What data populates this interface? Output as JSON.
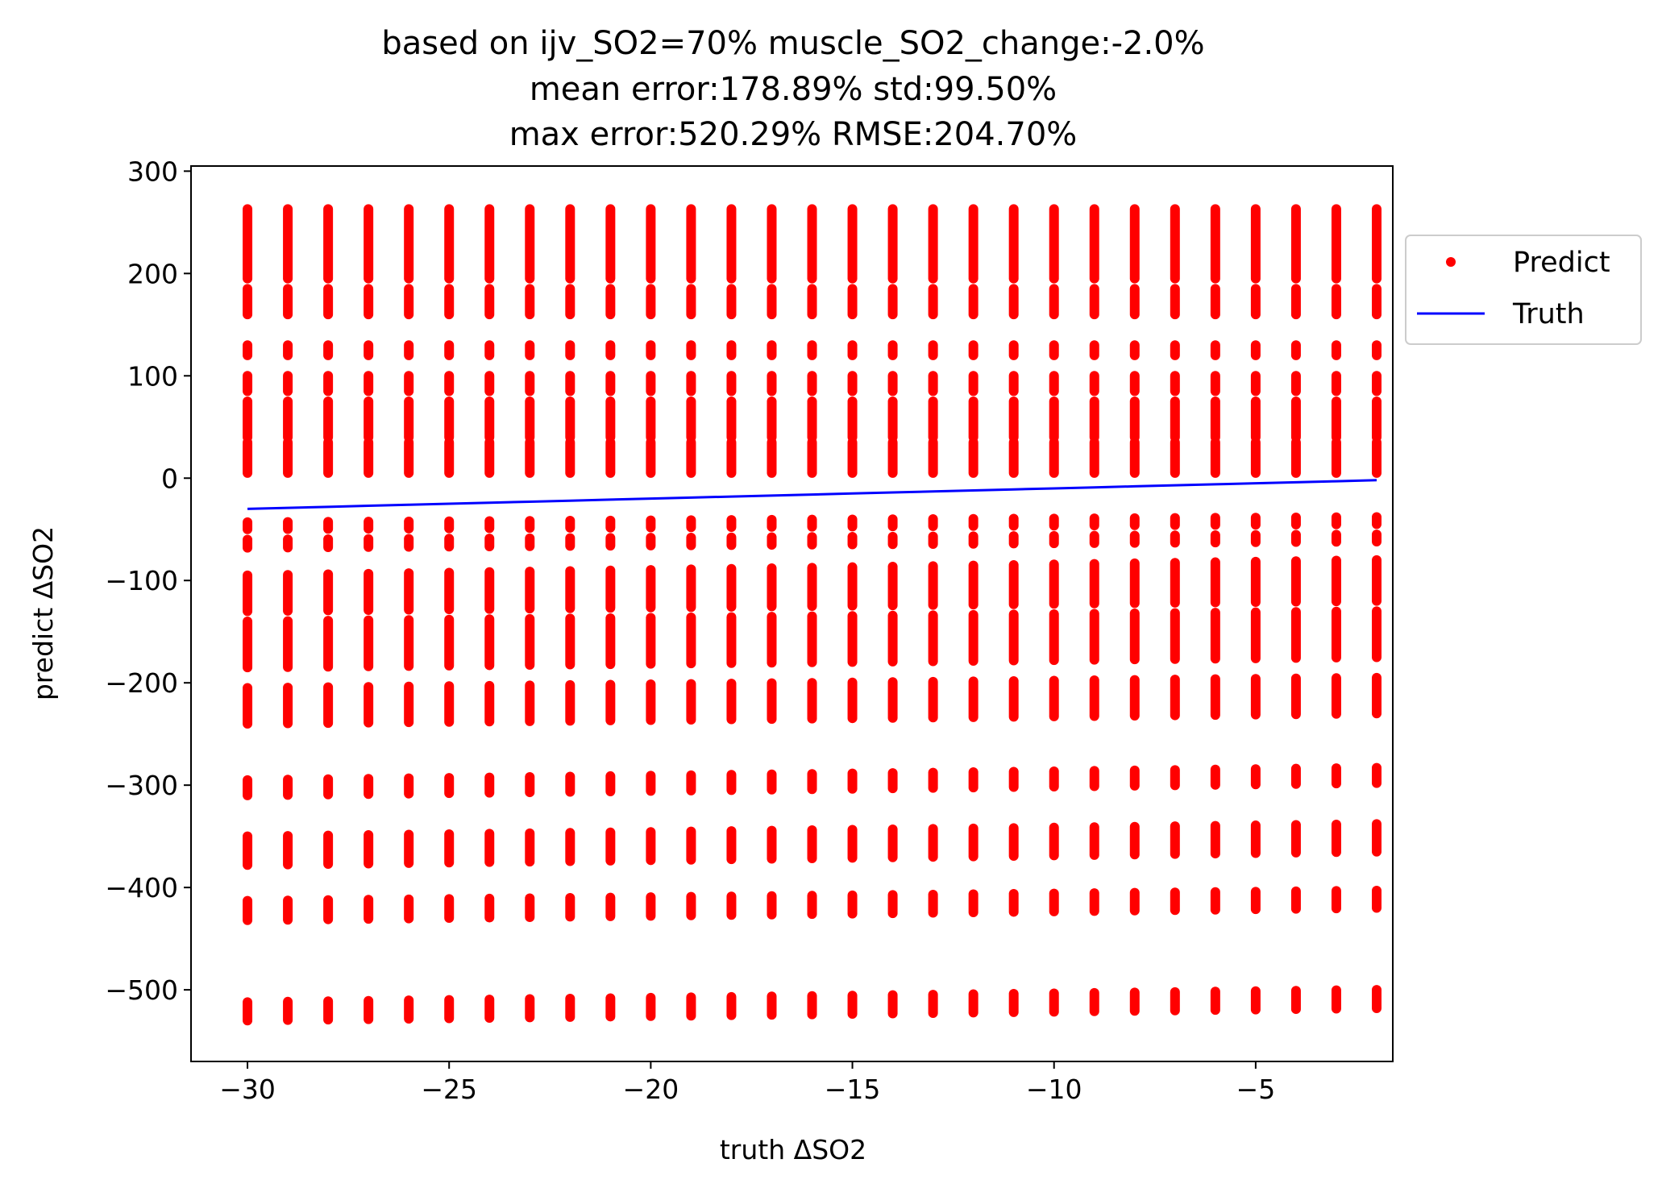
{
  "chart_data": {
    "type": "scatter",
    "title_lines": [
      "based on ijv_SO2=70% muscle_SO2_change:-2.0%",
      "mean error:178.89% std:99.50%",
      "max error:520.29% RMSE:204.70%"
    ],
    "xlabel": "truth ΔSO2",
    "ylabel": "predict ΔSO2",
    "xlim": [
      -31.4,
      -1.6
    ],
    "ylim": [
      -570,
      305
    ],
    "x_ticks": [
      -30,
      -25,
      -20,
      -15,
      -10,
      -5
    ],
    "x_tick_labels": [
      "−30",
      "−25",
      "−20",
      "−15",
      "−10",
      "−5"
    ],
    "y_ticks": [
      300,
      200,
      100,
      0,
      -100,
      -200,
      -300,
      -400,
      -500
    ],
    "y_tick_labels": [
      "300",
      "200",
      "100",
      "0",
      "−100",
      "−200",
      "−300",
      "−400",
      "−500"
    ],
    "grid": false,
    "legend_position": "outside-right-top",
    "x": [
      -30,
      -29,
      -28,
      -27,
      -26,
      -25,
      -24,
      -23,
      -22,
      -21,
      -20,
      -19,
      -18,
      -17,
      -16,
      -15,
      -14,
      -13,
      -12,
      -11,
      -10,
      -9,
      -8,
      -7,
      -6,
      -5,
      -4,
      -3,
      -2
    ],
    "series": [
      {
        "name": "Predict",
        "style": "points",
        "color": "#ff0000",
        "prediction_bands_at_x_minus_30": [
          [
            195,
            263
          ],
          [
            160,
            185
          ],
          [
            120,
            130
          ],
          [
            85,
            100
          ],
          [
            40,
            75
          ],
          [
            5,
            35
          ],
          [
            -50,
            -43
          ],
          [
            -68,
            -60
          ],
          [
            -130,
            -95
          ],
          [
            -185,
            -140
          ],
          [
            -240,
            -205
          ],
          [
            -310,
            -295
          ],
          [
            -378,
            -350
          ],
          [
            -432,
            -413
          ],
          [
            -530,
            -512
          ]
        ],
        "prediction_bands_at_x_minus_2": [
          [
            195,
            263
          ],
          [
            160,
            185
          ],
          [
            120,
            130
          ],
          [
            85,
            100
          ],
          [
            40,
            75
          ],
          [
            5,
            35
          ],
          [
            -45,
            -38
          ],
          [
            -62,
            -55
          ],
          [
            -120,
            -80
          ],
          [
            -175,
            -130
          ],
          [
            -230,
            -195
          ],
          [
            -298,
            -283
          ],
          [
            -365,
            -338
          ],
          [
            -420,
            -403
          ],
          [
            -518,
            -500
          ]
        ]
      },
      {
        "name": "Truth",
        "style": "line",
        "color": "#0000ff",
        "values": [
          -30,
          -29,
          -28,
          -27,
          -26,
          -25,
          -24,
          -23,
          -22,
          -21,
          -20,
          -19,
          -18,
          -17,
          -16,
          -15,
          -14,
          -13,
          -12,
          -11,
          -10,
          -9,
          -8,
          -7,
          -6,
          -5,
          -4,
          -3,
          -2
        ]
      }
    ]
  }
}
